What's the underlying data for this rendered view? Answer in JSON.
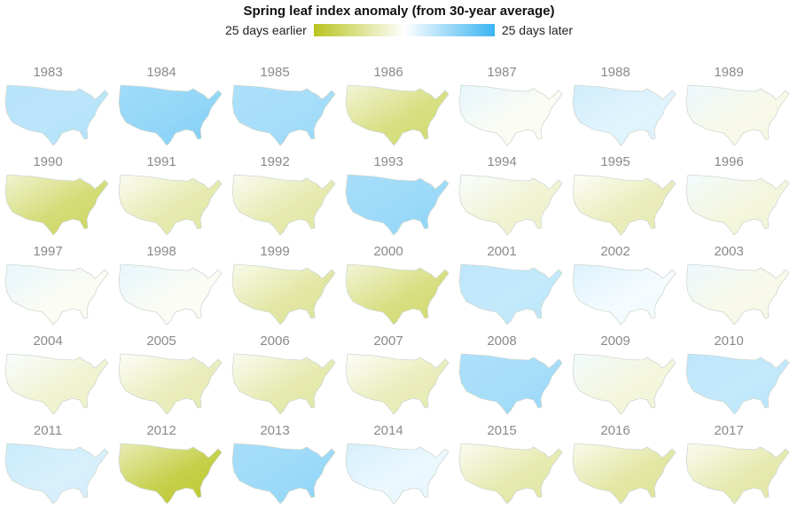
{
  "title": "Spring leaf index anomaly (from 30-year average)",
  "legend": {
    "left_label": "25 days earlier",
    "right_label": "25 days later",
    "earlier_color": "#b8c41e",
    "neutral_color": "#ffffff",
    "later_color": "#3ab4f2"
  },
  "years": [
    {
      "year": "1983",
      "anomaly": 0.35
    },
    {
      "year": "1984",
      "anomaly": 0.55
    },
    {
      "year": "1985",
      "anomaly": 0.45
    },
    {
      "year": "1986",
      "anomaly": -0.55
    },
    {
      "year": "1987",
      "anomaly": -0.05
    },
    {
      "year": "1988",
      "anomaly": 0.15
    },
    {
      "year": "1989",
      "anomaly": -0.1
    },
    {
      "year": "1990",
      "anomaly": -0.6
    },
    {
      "year": "1991",
      "anomaly": -0.35
    },
    {
      "year": "1992",
      "anomaly": -0.35
    },
    {
      "year": "1993",
      "anomaly": 0.5
    },
    {
      "year": "1994",
      "anomaly": -0.2
    },
    {
      "year": "1995",
      "anomaly": -0.3
    },
    {
      "year": "1996",
      "anomaly": -0.15
    },
    {
      "year": "1997",
      "anomaly": -0.05
    },
    {
      "year": "1998",
      "anomaly": -0.05
    },
    {
      "year": "1999",
      "anomaly": -0.4
    },
    {
      "year": "2000",
      "anomaly": -0.55
    },
    {
      "year": "2001",
      "anomaly": 0.3
    },
    {
      "year": "2002",
      "anomaly": 0.05
    },
    {
      "year": "2003",
      "anomaly": -0.1
    },
    {
      "year": "2004",
      "anomaly": -0.2
    },
    {
      "year": "2005",
      "anomaly": -0.3
    },
    {
      "year": "2006",
      "anomaly": -0.35
    },
    {
      "year": "2007",
      "anomaly": -0.3
    },
    {
      "year": "2008",
      "anomaly": 0.45
    },
    {
      "year": "2009",
      "anomaly": -0.15
    },
    {
      "year": "2010",
      "anomaly": 0.3
    },
    {
      "year": "2011",
      "anomaly": 0.2
    },
    {
      "year": "2012",
      "anomaly": -0.8
    },
    {
      "year": "2013",
      "anomaly": 0.5
    },
    {
      "year": "2014",
      "anomaly": 0.1
    },
    {
      "year": "2015",
      "anomaly": -0.35
    },
    {
      "year": "2016",
      "anomaly": -0.4
    },
    {
      "year": "2017",
      "anomaly": -0.35
    }
  ]
}
